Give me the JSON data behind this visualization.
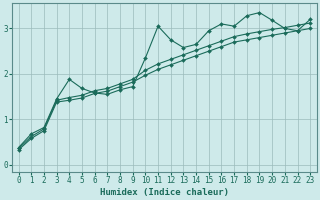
{
  "xlabel": "Humidex (Indice chaleur)",
  "bg_color": "#ceeaea",
  "grid_color": "#9bbcbc",
  "line_color": "#1a6b5a",
  "xlim": [
    -0.5,
    23.5
  ],
  "ylim": [
    -0.15,
    3.55
  ],
  "yticks": [
    0,
    1,
    2,
    3
  ],
  "xticks": [
    0,
    1,
    2,
    3,
    4,
    5,
    6,
    7,
    8,
    9,
    10,
    11,
    12,
    13,
    14,
    15,
    16,
    17,
    18,
    19,
    20,
    21,
    22,
    23
  ],
  "series1_x": [
    0,
    1,
    2,
    3,
    4,
    5,
    6,
    7,
    8,
    9,
    10,
    11,
    12,
    13,
    14,
    15,
    16,
    17,
    18,
    19,
    20,
    21,
    22,
    23
  ],
  "series1_y": [
    0.38,
    0.68,
    0.82,
    1.45,
    1.88,
    1.68,
    1.58,
    1.55,
    1.65,
    1.72,
    2.35,
    3.05,
    2.75,
    2.58,
    2.65,
    2.95,
    3.1,
    3.05,
    3.28,
    3.35,
    3.18,
    3.0,
    2.95,
    3.2
  ],
  "series2_x": [
    0,
    1,
    2,
    3,
    4,
    5,
    6,
    7,
    8,
    9,
    10,
    11,
    12,
    13,
    14,
    15,
    16,
    17,
    18,
    19,
    20,
    21,
    22,
    23
  ],
  "series2_y": [
    0.36,
    0.62,
    0.79,
    1.42,
    1.48,
    1.53,
    1.63,
    1.68,
    1.78,
    1.88,
    2.08,
    2.22,
    2.32,
    2.42,
    2.52,
    2.62,
    2.72,
    2.82,
    2.88,
    2.93,
    2.98,
    3.02,
    3.07,
    3.12
  ],
  "series3_x": [
    0,
    1,
    2,
    3,
    4,
    5,
    6,
    7,
    8,
    9,
    10,
    11,
    12,
    13,
    14,
    15,
    16,
    17,
    18,
    19,
    20,
    21,
    22,
    23
  ],
  "series3_y": [
    0.33,
    0.58,
    0.75,
    1.38,
    1.42,
    1.47,
    1.57,
    1.62,
    1.72,
    1.82,
    1.97,
    2.1,
    2.2,
    2.3,
    2.4,
    2.5,
    2.6,
    2.7,
    2.75,
    2.8,
    2.85,
    2.9,
    2.95,
    3.0
  ],
  "marker": "D",
  "markersize": 2.0,
  "linewidth": 0.8,
  "tick_fontsize": 5.5,
  "xlabel_fontsize": 6.5,
  "spine_color": "#5a8a8a"
}
